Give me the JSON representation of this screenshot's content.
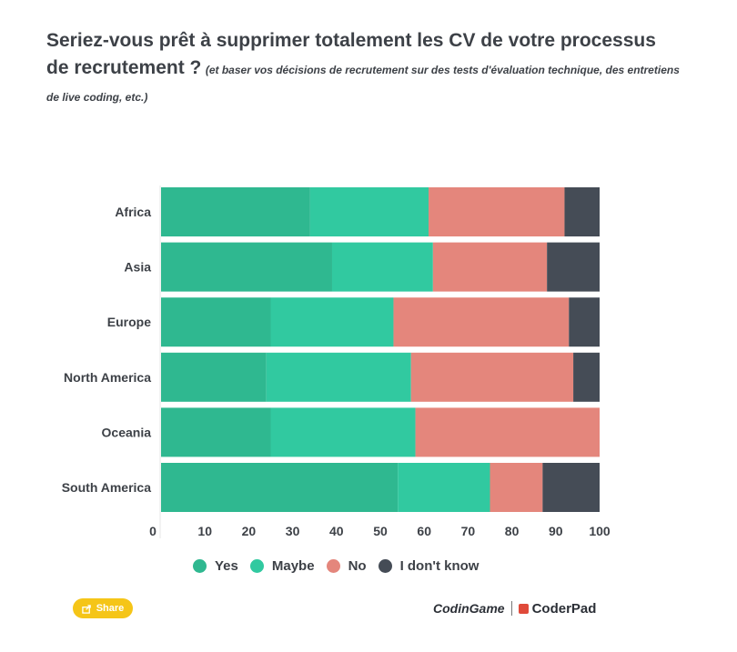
{
  "title": {
    "main": "Seriez-vous prêt à supprimer totalement les CV de votre processus de recrutement ?",
    "subtitle": "(et baser vos décisions de recrutement sur des tests d'évaluation technique, des entretiens de live coding, etc.)"
  },
  "chart_data": {
    "type": "bar",
    "orientation": "horizontal",
    "stacked": true,
    "categories": [
      "Africa",
      "Asia",
      "Europe",
      "North America",
      "Oceania",
      "South America"
    ],
    "series": [
      {
        "name": "Yes",
        "color": "#2fb890",
        "values": [
          34,
          39,
          25,
          24,
          25,
          54
        ]
      },
      {
        "name": "Maybe",
        "color": "#31c9a0",
        "values": [
          27,
          23,
          28,
          33,
          33,
          21
        ]
      },
      {
        "name": "No",
        "color": "#e4867c",
        "values": [
          31,
          26,
          40,
          37,
          42,
          12
        ]
      },
      {
        "name": "I don't know",
        "color": "#454c56",
        "values": [
          8,
          12,
          7,
          6,
          0,
          13
        ]
      }
    ],
    "xlim": [
      0,
      100
    ],
    "xticks": [
      0,
      10,
      20,
      30,
      40,
      50,
      60,
      70,
      80,
      90,
      100
    ],
    "grid": false,
    "legend_position": "bottom"
  },
  "legend": [
    {
      "label": "Yes",
      "color": "#2fb890"
    },
    {
      "label": "Maybe",
      "color": "#31c9a0"
    },
    {
      "label": "No",
      "color": "#e4867c"
    },
    {
      "label": "I don't know",
      "color": "#454c56"
    }
  ],
  "share": {
    "label": "Share",
    "icon": "share-icon"
  },
  "brand": {
    "codingame": "CodinGame",
    "coderpad": "CoderPad"
  }
}
